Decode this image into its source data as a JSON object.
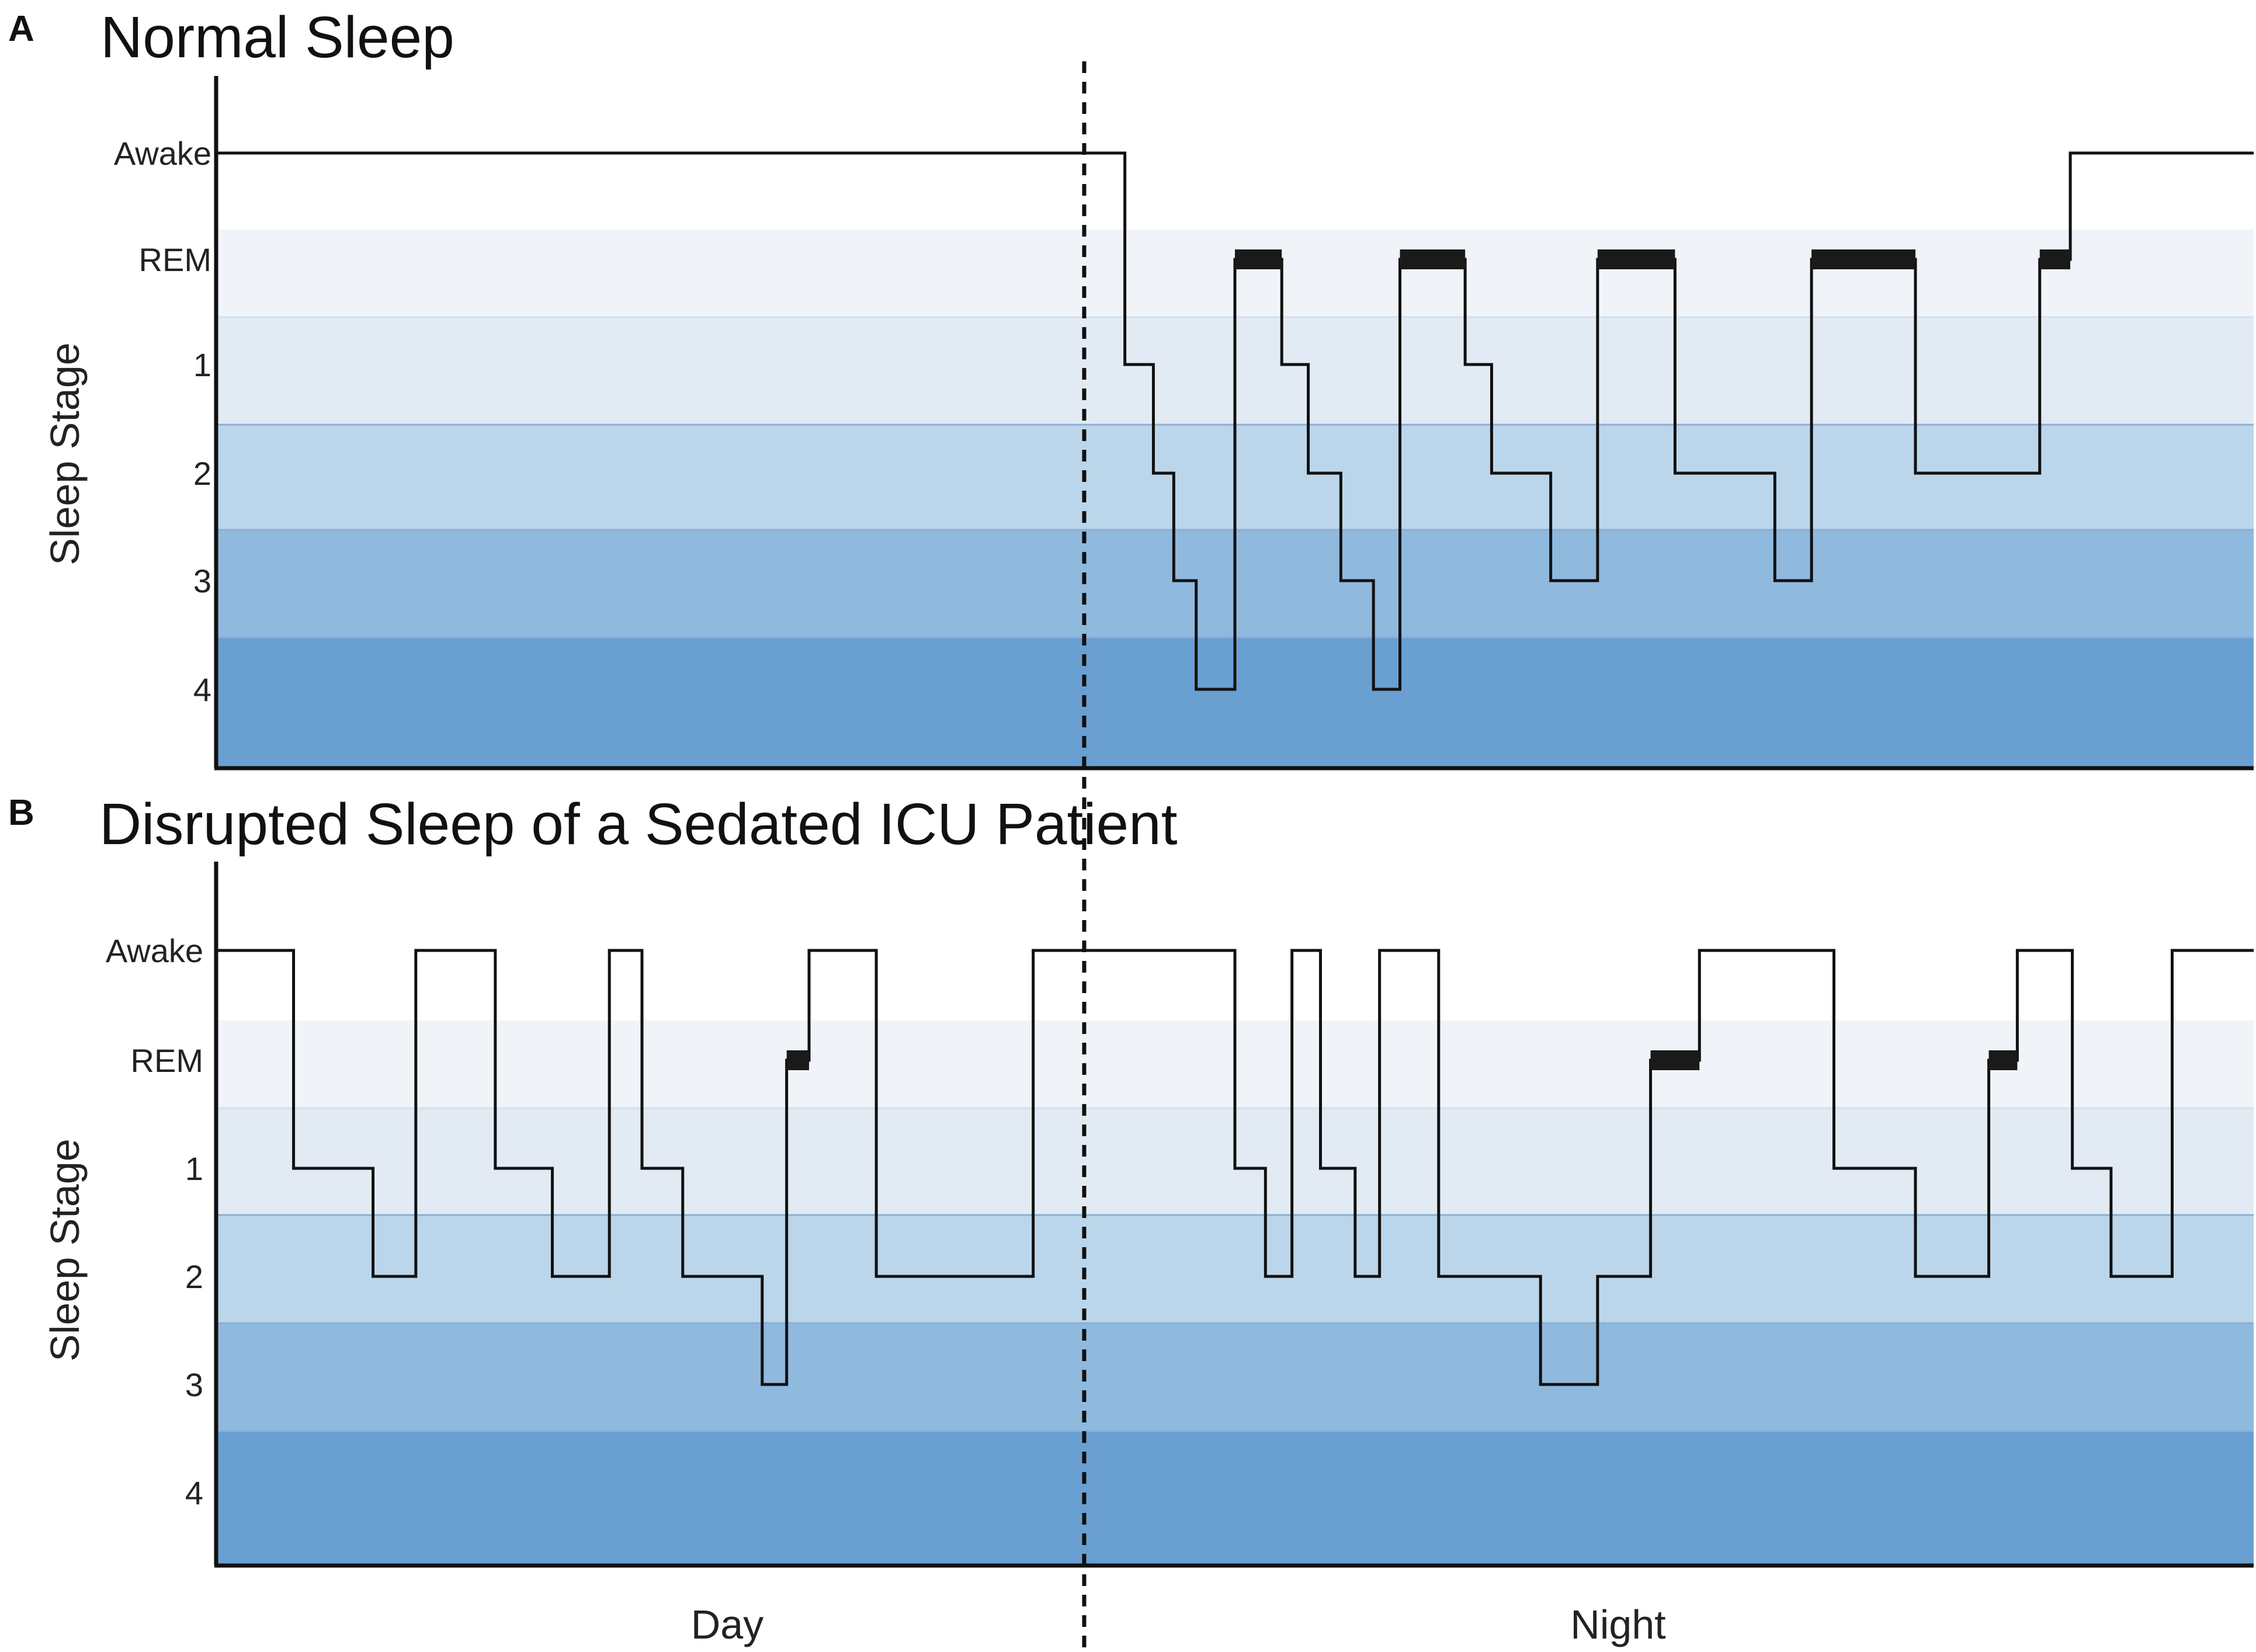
{
  "chart_data": [
    {
      "type": "line",
      "panel_label": "A",
      "title": "Normal Sleep",
      "ylabel": "Sleep Stage",
      "y_categories": [
        "Awake",
        "REM",
        "1",
        "2",
        "3",
        "4"
      ],
      "x_range": [
        0,
        100
      ],
      "x_divider": 42.6,
      "stage_steps": [
        [
          0,
          "Awake"
        ],
        [
          44.6,
          "1"
        ],
        [
          46.0,
          "2"
        ],
        [
          47.0,
          "3"
        ],
        [
          48.1,
          "4"
        ],
        [
          50.0,
          "REM"
        ],
        [
          52.3,
          "1"
        ],
        [
          53.6,
          "2"
        ],
        [
          55.2,
          "3"
        ],
        [
          56.8,
          "4"
        ],
        [
          58.1,
          "REM"
        ],
        [
          61.3,
          "1"
        ],
        [
          62.6,
          "2"
        ],
        [
          65.5,
          "3"
        ],
        [
          67.8,
          "REM"
        ],
        [
          71.6,
          "2"
        ],
        [
          76.5,
          "3"
        ],
        [
          78.3,
          "REM"
        ],
        [
          83.4,
          "2"
        ],
        [
          89.5,
          "REM"
        ],
        [
          91.0,
          "Awake"
        ],
        [
          100,
          "Awake"
        ]
      ],
      "rem_blocks": [
        [
          50.0,
          52.3
        ],
        [
          58.1,
          61.3
        ],
        [
          67.8,
          71.6
        ],
        [
          78.3,
          83.4
        ],
        [
          89.5,
          91.0
        ]
      ]
    },
    {
      "type": "line",
      "panel_label": "B",
      "title": "Disrupted Sleep of a Sedated ICU Patient",
      "ylabel": "Sleep Stage",
      "y_categories": [
        "Awake",
        "REM",
        "1",
        "2",
        "3",
        "4"
      ],
      "x_range": [
        0,
        100
      ],
      "x_divider": 42.6,
      "stage_steps": [
        [
          0,
          "Awake"
        ],
        [
          3.8,
          "1"
        ],
        [
          7.7,
          "2"
        ],
        [
          9.8,
          "Awake"
        ],
        [
          13.7,
          "1"
        ],
        [
          16.5,
          "2"
        ],
        [
          19.3,
          "Awake"
        ],
        [
          20.9,
          "1"
        ],
        [
          22.9,
          "2"
        ],
        [
          26.8,
          "3"
        ],
        [
          28.0,
          "REM"
        ],
        [
          29.1,
          "Awake"
        ],
        [
          32.4,
          "2"
        ],
        [
          40.1,
          "Awake"
        ],
        [
          50.0,
          "1"
        ],
        [
          51.5,
          "2"
        ],
        [
          52.8,
          "Awake"
        ],
        [
          54.2,
          "1"
        ],
        [
          55.9,
          "2"
        ],
        [
          57.1,
          "Awake"
        ],
        [
          60.0,
          "2"
        ],
        [
          65.0,
          "3"
        ],
        [
          67.8,
          "2"
        ],
        [
          70.4,
          "REM"
        ],
        [
          72.8,
          "Awake"
        ],
        [
          79.4,
          "1"
        ],
        [
          83.4,
          "2"
        ],
        [
          87.0,
          "REM"
        ],
        [
          88.4,
          "Awake"
        ],
        [
          91.1,
          "1"
        ],
        [
          93.0,
          "2"
        ],
        [
          96.0,
          "Awake"
        ],
        [
          100,
          "Awake"
        ]
      ],
      "rem_blocks": [
        [
          28.0,
          29.1
        ],
        [
          70.4,
          72.8
        ],
        [
          87.0,
          88.4
        ]
      ]
    }
  ],
  "x_axis": {
    "labels": [
      "Day",
      "Night"
    ]
  },
  "colors": {
    "band_rem": "#f0f4f9",
    "band_1": "#e2ebf4",
    "band_2": "#bbd6ea",
    "band_3": "#90b9de",
    "band_4": "#6a9fd2",
    "band_divider": "#8aaed6",
    "line": "#111111",
    "rem_block": "#1a1a1a",
    "axis": "#111111"
  }
}
